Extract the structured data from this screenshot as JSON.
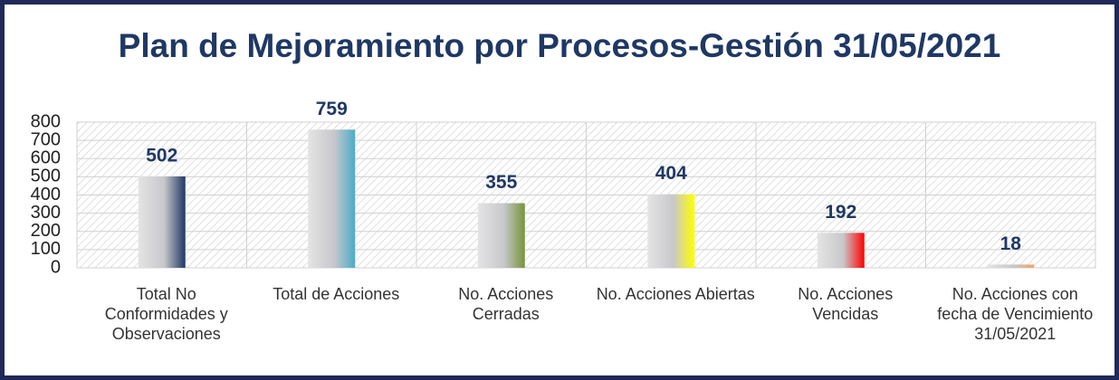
{
  "chart_data": {
    "type": "bar",
    "title": "Plan de Mejoramiento por Procesos-Gestión 31/05/2021",
    "categories": [
      "Total No Conformidades y Observaciones",
      "Total de Acciones",
      "No. Acciones Cerradas",
      "No. Acciones Abiertas",
      "No. Acciones Vencidas",
      "No. Acciones con fecha de Vencimiento 31/05/2021"
    ],
    "values": [
      502,
      759,
      355,
      404,
      192,
      18
    ],
    "colors": [
      "#1f3864",
      "#4bacc6",
      "#77933c",
      "#ffff00",
      "#ff0000",
      "#f4a46a"
    ],
    "ylim": [
      0,
      800
    ],
    "yticks": [
      0,
      100,
      200,
      300,
      400,
      500,
      600,
      700,
      800
    ],
    "grid": true
  }
}
